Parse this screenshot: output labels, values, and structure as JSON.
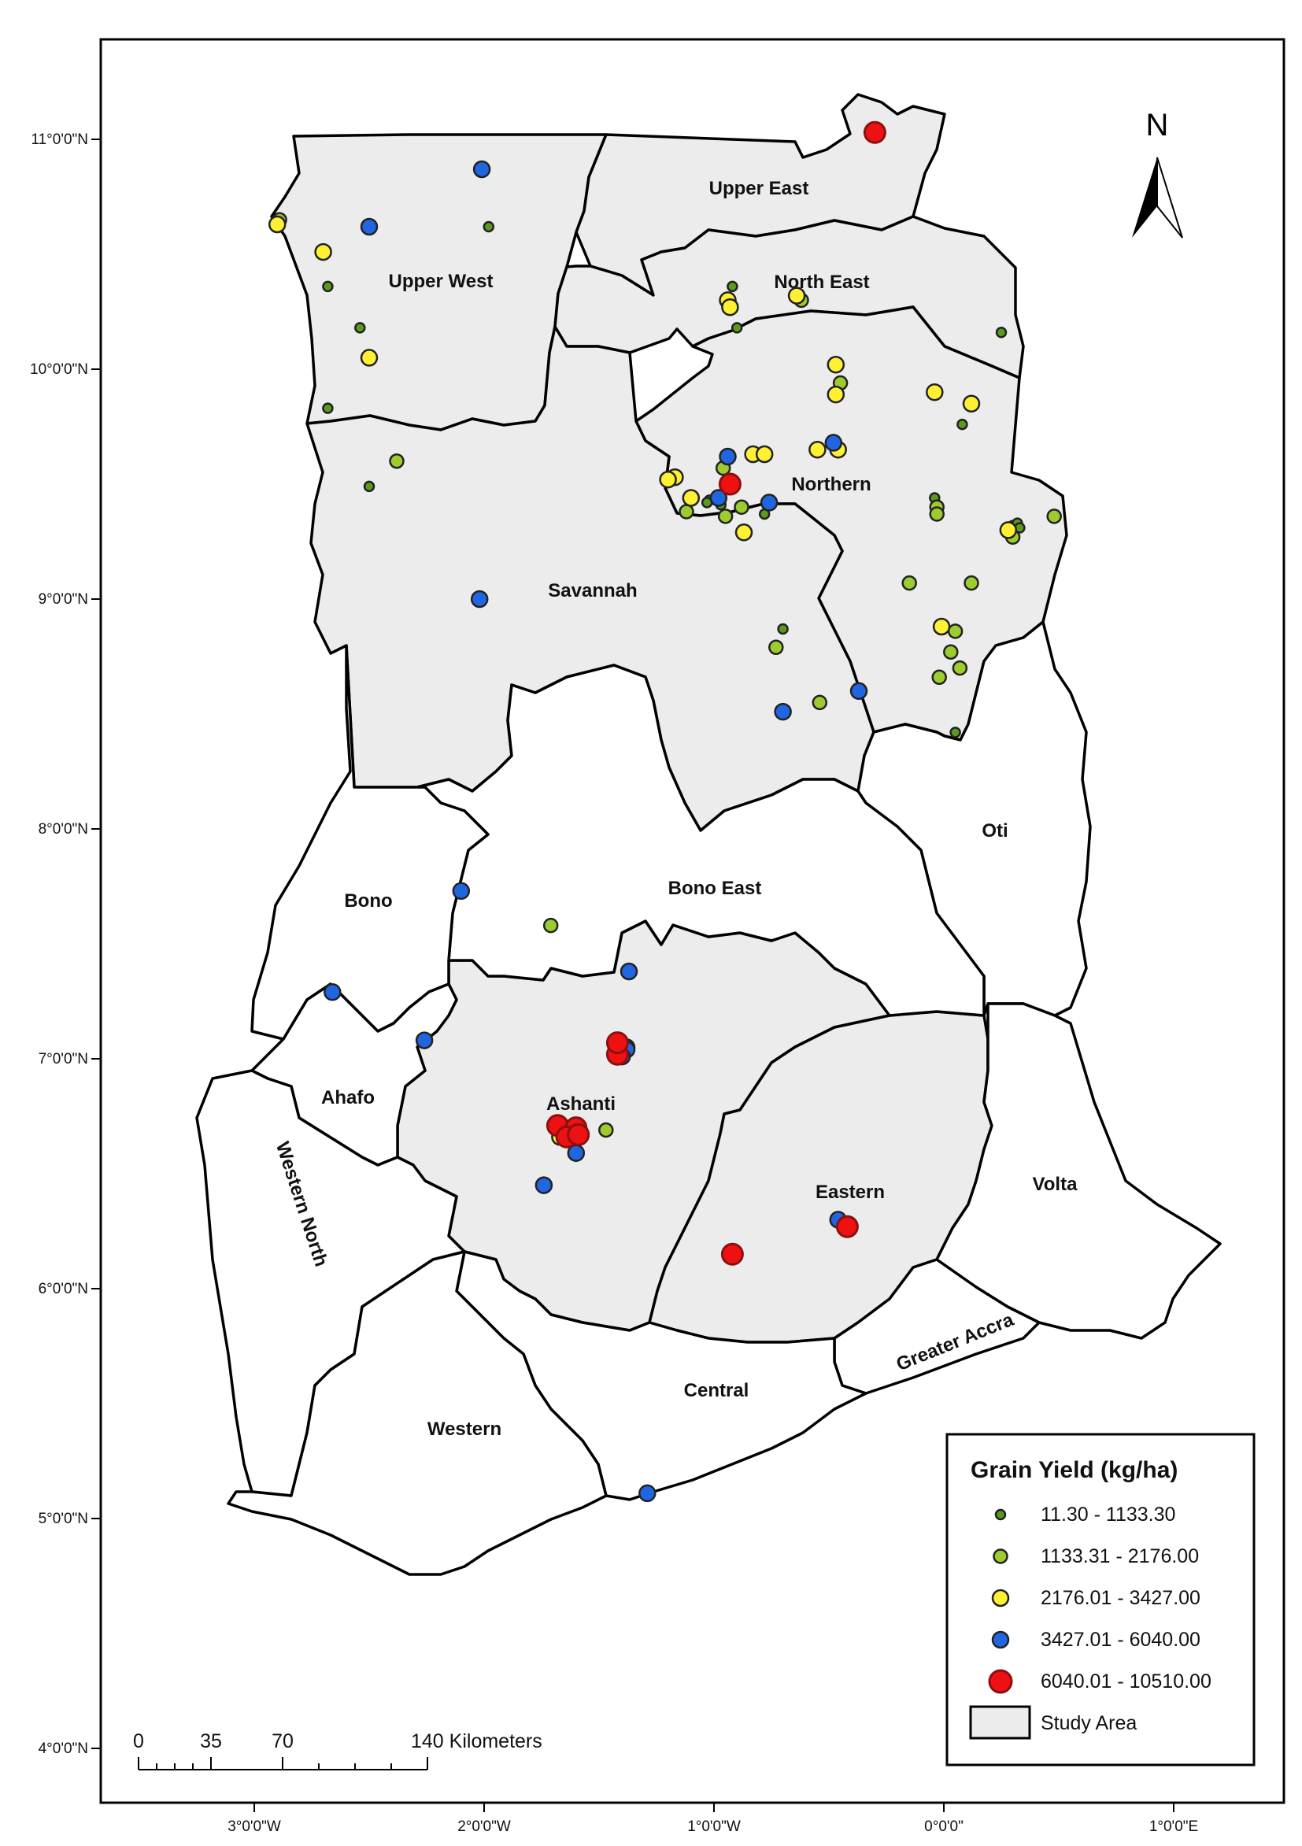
{
  "map": {
    "north_label": "N",
    "lat_labels": [
      "11°0'0\"N",
      "10°0'0\"N",
      "9°0'0\"N",
      "8°0'0\"N",
      "7°0'0\"N",
      "6°0'0\"N",
      "5°0'0\"N",
      "4°0'0\"N"
    ],
    "lon_labels": [
      "3°0'0\"W",
      "2°0'0\"W",
      "1°0'0\"W",
      "0°0'0\"",
      "1°0'0\"E"
    ],
    "regions": {
      "upper_west": "Upper West",
      "upper_east": "Upper East",
      "north_east": "North East",
      "northern": "Northern",
      "savannah": "Savannah",
      "oti": "Oti",
      "bono": "Bono",
      "bono_east": "Bono East",
      "ahafo": "Ahafo",
      "ashanti": "Ashanti",
      "eastern": "Eastern",
      "volta": "Volta",
      "western_north": "Western North",
      "greater_accra": "Greater Accra",
      "central": "Central",
      "western": "Western"
    }
  },
  "legend": {
    "title": "Grain Yield (kg/ha)",
    "classes": [
      {
        "label": "11.30 - 1133.30",
        "color": "#5a9a1e",
        "class": 1
      },
      {
        "label": "1133.31 - 2176.00",
        "color": "#9ccc2e",
        "class": 2
      },
      {
        "label": "2176.01 - 3427.00",
        "color": "#fff033",
        "class": 3
      },
      {
        "label": "3427.01 - 6040.00",
        "color": "#1f66e0",
        "class": 4
      },
      {
        "label": "6040.01 - 10510.00",
        "color": "#ee1111",
        "class": 5
      }
    ],
    "study_area_label": "Study Area",
    "study_area_color": "#ececec"
  },
  "scale_bar": {
    "labels": [
      "0",
      "35",
      "70",
      "140 Kilometers"
    ]
  },
  "points": [
    {
      "lon": -2.89,
      "lat": 10.65,
      "class": 2
    },
    {
      "lon": -2.9,
      "lat": 10.63,
      "class": 3
    },
    {
      "lon": -2.7,
      "lat": 10.51,
      "class": 3
    },
    {
      "lon": -2.5,
      "lat": 10.62,
      "class": 4
    },
    {
      "lon": -2.01,
      "lat": 10.87,
      "class": 4
    },
    {
      "lon": -1.98,
      "lat": 10.62,
      "class": 1
    },
    {
      "lon": -2.68,
      "lat": 10.36,
      "class": 1
    },
    {
      "lon": -2.54,
      "lat": 10.18,
      "class": 1
    },
    {
      "lon": -2.5,
      "lat": 10.05,
      "class": 3
    },
    {
      "lon": -2.68,
      "lat": 9.83,
      "class": 1
    },
    {
      "lon": -0.3,
      "lat": 11.03,
      "class": 5
    },
    {
      "lon": -0.92,
      "lat": 10.36,
      "class": 1
    },
    {
      "lon": -0.94,
      "lat": 10.3,
      "class": 3
    },
    {
      "lon": -0.93,
      "lat": 10.27,
      "class": 3
    },
    {
      "lon": -0.64,
      "lat": 10.32,
      "class": 3
    },
    {
      "lon": -0.62,
      "lat": 10.3,
      "class": 2
    },
    {
      "lon": -0.9,
      "lat": 10.18,
      "class": 1
    },
    {
      "lon": 0.25,
      "lat": 10.16,
      "class": 1
    },
    {
      "lon": -0.47,
      "lat": 10.02,
      "class": 3
    },
    {
      "lon": -0.45,
      "lat": 9.94,
      "class": 2
    },
    {
      "lon": -0.47,
      "lat": 9.89,
      "class": 3
    },
    {
      "lon": -0.04,
      "lat": 9.9,
      "class": 3
    },
    {
      "lon": 0.12,
      "lat": 9.85,
      "class": 3
    },
    {
      "lon": 0.08,
      "lat": 9.76,
      "class": 1
    },
    {
      "lon": -0.48,
      "lat": 9.68,
      "class": 4
    },
    {
      "lon": -0.46,
      "lat": 9.65,
      "class": 3
    },
    {
      "lon": -0.55,
      "lat": 9.65,
      "class": 3
    },
    {
      "lon": -0.83,
      "lat": 9.63,
      "class": 3
    },
    {
      "lon": -0.78,
      "lat": 9.63,
      "class": 3
    },
    {
      "lon": -0.94,
      "lat": 9.62,
      "class": 4
    },
    {
      "lon": -0.96,
      "lat": 9.57,
      "class": 2
    },
    {
      "lon": -0.93,
      "lat": 9.5,
      "class": 5
    },
    {
      "lon": -1.17,
      "lat": 9.53,
      "class": 3
    },
    {
      "lon": -1.2,
      "lat": 9.52,
      "class": 3
    },
    {
      "lon": -1.1,
      "lat": 9.44,
      "class": 3
    },
    {
      "lon": -1.02,
      "lat": 9.43,
      "class": 1
    },
    {
      "lon": -1.03,
      "lat": 9.42,
      "class": 1
    },
    {
      "lon": -0.98,
      "lat": 9.44,
      "class": 4
    },
    {
      "lon": -0.97,
      "lat": 9.41,
      "class": 1
    },
    {
      "lon": -0.88,
      "lat": 9.4,
      "class": 2
    },
    {
      "lon": -0.95,
      "lat": 9.36,
      "class": 2
    },
    {
      "lon": -1.12,
      "lat": 9.38,
      "class": 2
    },
    {
      "lon": -0.76,
      "lat": 9.42,
      "class": 4
    },
    {
      "lon": -0.78,
      "lat": 9.37,
      "class": 1
    },
    {
      "lon": -0.87,
      "lat": 9.29,
      "class": 3
    },
    {
      "lon": -0.04,
      "lat": 9.44,
      "class": 1
    },
    {
      "lon": -0.03,
      "lat": 9.4,
      "class": 2
    },
    {
      "lon": -0.03,
      "lat": 9.37,
      "class": 2
    },
    {
      "lon": 0.3,
      "lat": 9.32,
      "class": 1
    },
    {
      "lon": 0.32,
      "lat": 9.33,
      "class": 1
    },
    {
      "lon": 0.28,
      "lat": 9.3,
      "class": 3
    },
    {
      "lon": 0.3,
      "lat": 9.27,
      "class": 2
    },
    {
      "lon": 0.33,
      "lat": 9.31,
      "class": 1
    },
    {
      "lon": 0.48,
      "lat": 9.36,
      "class": 2
    },
    {
      "lon": -2.38,
      "lat": 9.6,
      "class": 2
    },
    {
      "lon": -2.5,
      "lat": 9.49,
      "class": 1
    },
    {
      "lon": -2.02,
      "lat": 9.0,
      "class": 4
    },
    {
      "lon": -0.15,
      "lat": 9.07,
      "class": 2
    },
    {
      "lon": 0.12,
      "lat": 9.07,
      "class": 2
    },
    {
      "lon": -0.01,
      "lat": 8.88,
      "class": 3
    },
    {
      "lon": 0.05,
      "lat": 8.86,
      "class": 2
    },
    {
      "lon": 0.03,
      "lat": 8.77,
      "class": 2
    },
    {
      "lon": 0.07,
      "lat": 8.7,
      "class": 2
    },
    {
      "lon": -0.02,
      "lat": 8.66,
      "class": 2
    },
    {
      "lon": -0.7,
      "lat": 8.87,
      "class": 1
    },
    {
      "lon": -0.73,
      "lat": 8.79,
      "class": 2
    },
    {
      "lon": -0.37,
      "lat": 8.6,
      "class": 4
    },
    {
      "lon": -0.54,
      "lat": 8.55,
      "class": 2
    },
    {
      "lon": -0.7,
      "lat": 8.51,
      "class": 4
    },
    {
      "lon": 0.05,
      "lat": 8.42,
      "class": 1
    },
    {
      "lon": -2.1,
      "lat": 7.73,
      "class": 4
    },
    {
      "lon": -1.71,
      "lat": 7.58,
      "class": 2
    },
    {
      "lon": -1.37,
      "lat": 7.38,
      "class": 4
    },
    {
      "lon": -2.66,
      "lat": 7.29,
      "class": 4
    },
    {
      "lon": -2.26,
      "lat": 7.08,
      "class": 4
    },
    {
      "lon": -1.38,
      "lat": 7.05,
      "class": 4
    },
    {
      "lon": -1.42,
      "lat": 7.02,
      "class": 5
    },
    {
      "lon": -1.38,
      "lat": 7.04,
      "class": 4
    },
    {
      "lon": -1.4,
      "lat": 7.01,
      "class": 4
    },
    {
      "lon": -1.42,
      "lat": 7.07,
      "class": 5
    },
    {
      "lon": -1.68,
      "lat": 6.71,
      "class": 5
    },
    {
      "lon": -1.66,
      "lat": 6.69,
      "class": 4
    },
    {
      "lon": -1.6,
      "lat": 6.7,
      "class": 5
    },
    {
      "lon": -1.64,
      "lat": 6.66,
      "class": 5
    },
    {
      "lon": -1.67,
      "lat": 6.66,
      "class": 3
    },
    {
      "lon": -1.59,
      "lat": 6.67,
      "class": 5
    },
    {
      "lon": -1.47,
      "lat": 6.69,
      "class": 2
    },
    {
      "lon": -1.6,
      "lat": 6.59,
      "class": 4
    },
    {
      "lon": -1.74,
      "lat": 6.45,
      "class": 4
    },
    {
      "lon": -0.92,
      "lat": 6.15,
      "class": 5
    },
    {
      "lon": -0.46,
      "lat": 6.3,
      "class": 4
    },
    {
      "lon": -0.42,
      "lat": 6.27,
      "class": 5
    },
    {
      "lon": -1.29,
      "lat": 5.11,
      "class": 4
    }
  ]
}
